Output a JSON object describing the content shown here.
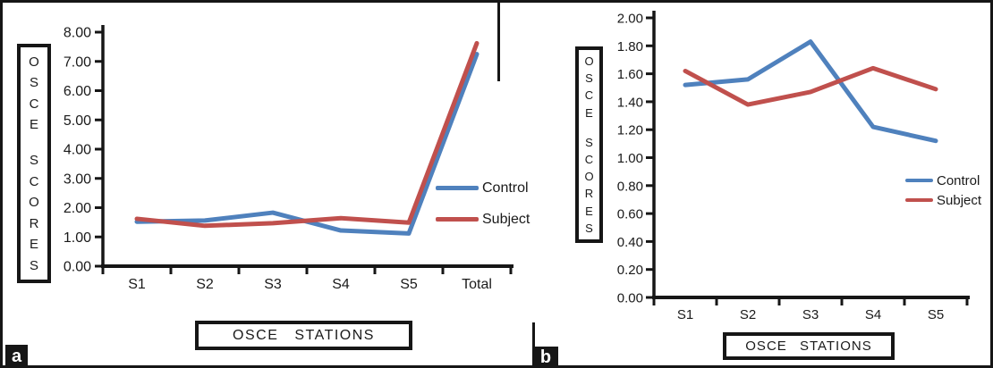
{
  "panels": [
    {
      "label": "a"
    },
    {
      "label": "b"
    }
  ],
  "chart_data": [
    {
      "type": "line",
      "panel": "a",
      "title": "",
      "xlabel": "OSCE STATIONS",
      "ylabel": "OSCE SCORES",
      "categories": [
        "S1",
        "S2",
        "S3",
        "S4",
        "S5",
        "Total"
      ],
      "series": [
        {
          "name": "Control",
          "color": "#4F81BD",
          "values": [
            1.52,
            1.56,
            1.83,
            1.22,
            1.12,
            7.25
          ]
        },
        {
          "name": "Subject",
          "color": "#C0504D",
          "values": [
            1.62,
            1.38,
            1.47,
            1.64,
            1.49,
            7.62
          ]
        }
      ],
      "ylim": [
        0,
        8
      ],
      "ytick_labels": [
        "0.00",
        "1.00",
        "2.00",
        "3.00",
        "4.00",
        "5.00",
        "6.00",
        "7.00",
        "8.00"
      ],
      "grid": false,
      "legend_position": "right-middle"
    },
    {
      "type": "line",
      "panel": "b",
      "title": "",
      "xlabel": "OSCE STATIONS",
      "ylabel": "OSCE SCORES",
      "categories": [
        "S1",
        "S2",
        "S3",
        "S4",
        "S5"
      ],
      "series": [
        {
          "name": "Control",
          "color": "#4F81BD",
          "values": [
            1.52,
            1.56,
            1.83,
            1.22,
            1.12
          ]
        },
        {
          "name": "Subject",
          "color": "#C0504D",
          "values": [
            1.62,
            1.38,
            1.47,
            1.64,
            1.49
          ]
        }
      ],
      "ylim": [
        0,
        2
      ],
      "ytick_labels": [
        "0.00",
        "0.20",
        "0.40",
        "0.60",
        "0.80",
        "1.00",
        "1.20",
        "1.40",
        "1.60",
        "1.80",
        "2.00"
      ],
      "grid": false,
      "legend_position": "right-middle"
    }
  ]
}
